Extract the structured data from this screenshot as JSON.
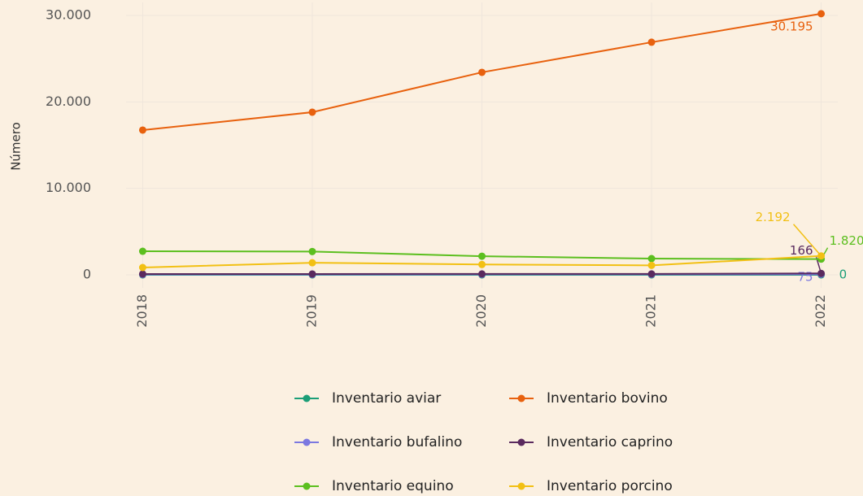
{
  "chart_data": {
    "type": "line",
    "y_label": "Número",
    "x": [
      2018,
      2019,
      2020,
      2021,
      2022
    ],
    "xlim": [
      2017.95,
      2022.05
    ],
    "xticks": [
      2018,
      2019,
      2020,
      2021,
      2022
    ],
    "ylim": [
      -1500,
      31500
    ],
    "yticks": [
      0,
      {
        "value": 10000,
        "label": "10.000"
      },
      {
        "value": 20000,
        "label": "20.000"
      },
      {
        "value": 30000,
        "label": "30.000"
      }
    ],
    "grid": true,
    "legend": "bottom",
    "series": [
      {
        "name": "Inventario aviar",
        "color": "#1b9e77",
        "values": [
          0,
          0,
          0,
          0,
          0
        ],
        "value_labels": [
          null,
          null,
          null,
          null,
          "0"
        ]
      },
      {
        "name": "Inventario bovino",
        "color": "#e8610e",
        "values": [
          16740,
          18810,
          23420,
          26900,
          30195
        ],
        "value_labels": [
          null,
          null,
          null,
          null,
          "30.195"
        ]
      },
      {
        "name": "Inventario bufalino",
        "color": "#7b78e0",
        "values": [
          50,
          50,
          60,
          60,
          75
        ],
        "value_labels": [
          null,
          null,
          null,
          null,
          "75"
        ]
      },
      {
        "name": "Inventario caprino",
        "color": "#5a2a5e",
        "values": [
          100,
          100,
          110,
          110,
          166
        ],
        "value_labels": [
          null,
          null,
          null,
          null,
          "166"
        ]
      },
      {
        "name": "Inventario equino",
        "color": "#5cbf1f",
        "values": [
          2730,
          2700,
          2160,
          1880,
          1820
        ],
        "value_labels": [
          null,
          null,
          null,
          null,
          "1.820"
        ]
      },
      {
        "name": "Inventario porcino",
        "color": "#f2c014",
        "values": [
          850,
          1400,
          1200,
          1100,
          2192
        ],
        "value_labels": [
          null,
          null,
          null,
          null,
          "2.192"
        ]
      }
    ]
  }
}
